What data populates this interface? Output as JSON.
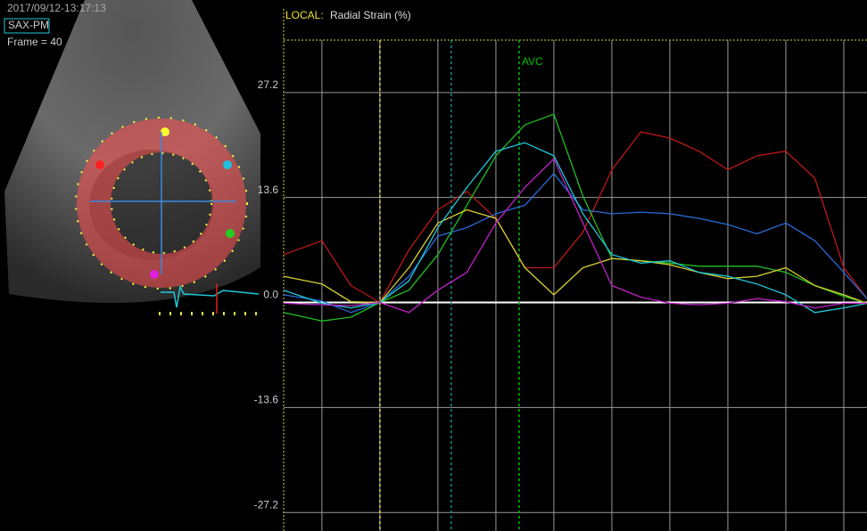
{
  "panel": {
    "timestamp": "2017/09/12-13:17:13",
    "view": "SAX-PM",
    "frame": "Frame = 40"
  },
  "chart_data": {
    "type": "line",
    "mode": "LOCAL:",
    "title": "Radial Strain (%)",
    "x": [
      -0.66,
      0,
      0.5,
      1,
      1.5,
      2,
      2.5,
      3,
      3.5,
      4,
      4.5,
      5,
      5.5,
      6,
      6.5,
      7,
      7.5,
      8,
      8.5,
      9,
      9.4
    ],
    "xlim": [
      -0.66,
      9.4
    ],
    "xgrid": [
      0,
      1,
      2,
      3,
      4,
      5,
      6,
      7,
      8,
      9
    ],
    "ylim": [
      -29.6,
      37.8
    ],
    "yticks": [
      27.2,
      13.6,
      {
        "value": 0,
        "label": "0.0"
      },
      -13.6,
      -27.2
    ],
    "grid": true,
    "markers": [
      {
        "x": 1.0,
        "color": "#d8d840"
      },
      {
        "x": 2.23,
        "color": "#1a8a8a"
      },
      {
        "x": 3.4,
        "color": "#00c000",
        "label": "AVC"
      }
    ],
    "series": [
      {
        "color": "#c01818",
        "values": [
          6.2,
          8.0,
          2.2,
          0,
          6.8,
          12.0,
          14.4,
          10.9,
          4.5,
          4.5,
          9.1,
          17.2,
          22.1,
          21.3,
          19.6,
          17.2,
          19.0,
          19.6,
          16.1,
          4.5,
          0.5
        ]
      },
      {
        "color": "#2a6ad8",
        "values": [
          1.0,
          0.2,
          -1.3,
          0,
          3.4,
          8.6,
          9.7,
          11.5,
          12.6,
          16.7,
          12.0,
          11.5,
          11.7,
          11.5,
          10.9,
          10.1,
          8.9,
          10.3,
          8.0,
          3.9,
          0.5
        ]
      },
      {
        "color": "#20c020",
        "values": [
          -1.3,
          -2.4,
          -1.9,
          0,
          1.6,
          6.2,
          12.6,
          19.0,
          23.0,
          24.4,
          13.8,
          5.7,
          5.4,
          5.1,
          4.7,
          4.7,
          4.7,
          3.9,
          2.2,
          0.8,
          -0.1
        ]
      },
      {
        "color": "#d8d030",
        "values": [
          3.4,
          2.4,
          0.1,
          0,
          4.5,
          10.3,
          12.0,
          10.9,
          4.5,
          1.0,
          4.5,
          5.7,
          5.4,
          4.9,
          3.9,
          3.1,
          3.4,
          4.5,
          2.2,
          1.0,
          -0.1
        ]
      },
      {
        "color": "#20c8d8",
        "values": [
          1.6,
          -0.1,
          -0.7,
          0,
          2.8,
          9.7,
          14.9,
          19.6,
          20.7,
          19.0,
          11.5,
          6.2,
          5.1,
          5.4,
          3.9,
          3.4,
          2.4,
          1.0,
          -1.3,
          -0.7,
          -0.1
        ]
      },
      {
        "color": "#c020c8",
        "values": [
          -0.1,
          -0.3,
          -0.4,
          0,
          -1.3,
          1.6,
          3.9,
          10.3,
          14.9,
          18.6,
          10.3,
          2.2,
          0.7,
          -0.1,
          -0.3,
          -0.1,
          0.5,
          0.1,
          -0.7,
          -0.1,
          -0.1
        ]
      }
    ]
  }
}
